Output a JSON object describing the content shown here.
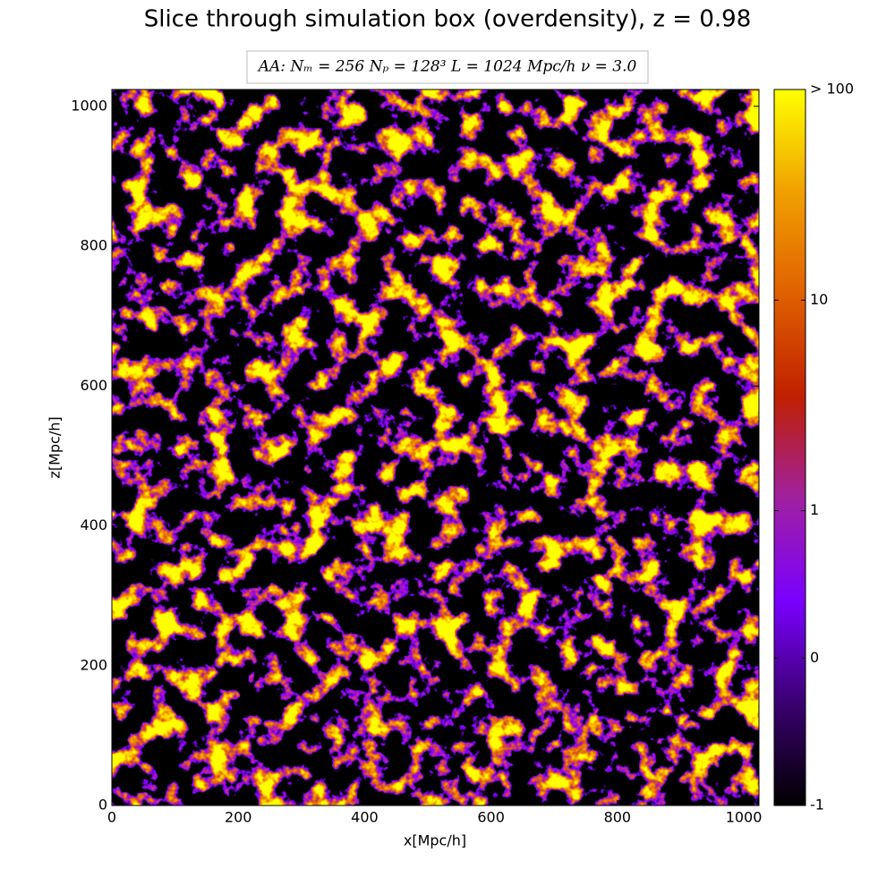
{
  "chart_data": {
    "type": "heatmap",
    "title": "Slice through simulation box (overdensity), z = 0.98",
    "subtitle": "AA:  Nₘ = 256   Nₚ = 128³   L = 1024 Mpc/h   ν = 3.0",
    "x_label": "x[Mpc/h]",
    "y_label": "z[Mpc/h]",
    "xlim": [
      0,
      1024
    ],
    "ylim": [
      0,
      1024
    ],
    "xticks": [
      0,
      200,
      400,
      600,
      800,
      1000
    ],
    "yticks": [
      0,
      200,
      400,
      600,
      800,
      1000
    ],
    "colorbar_scale": "symlog",
    "clim": [
      -1,
      100
    ],
    "colorbar_ticks": [
      -1,
      0,
      1,
      10,
      {
        "value": 100,
        "label": "> 100"
      }
    ],
    "colormap": [
      "#000000",
      "#3a0070",
      "#7a00ff",
      "#a020a0",
      "#c02000",
      "#e06000",
      "#f0a000",
      "#ffff00"
    ]
  }
}
